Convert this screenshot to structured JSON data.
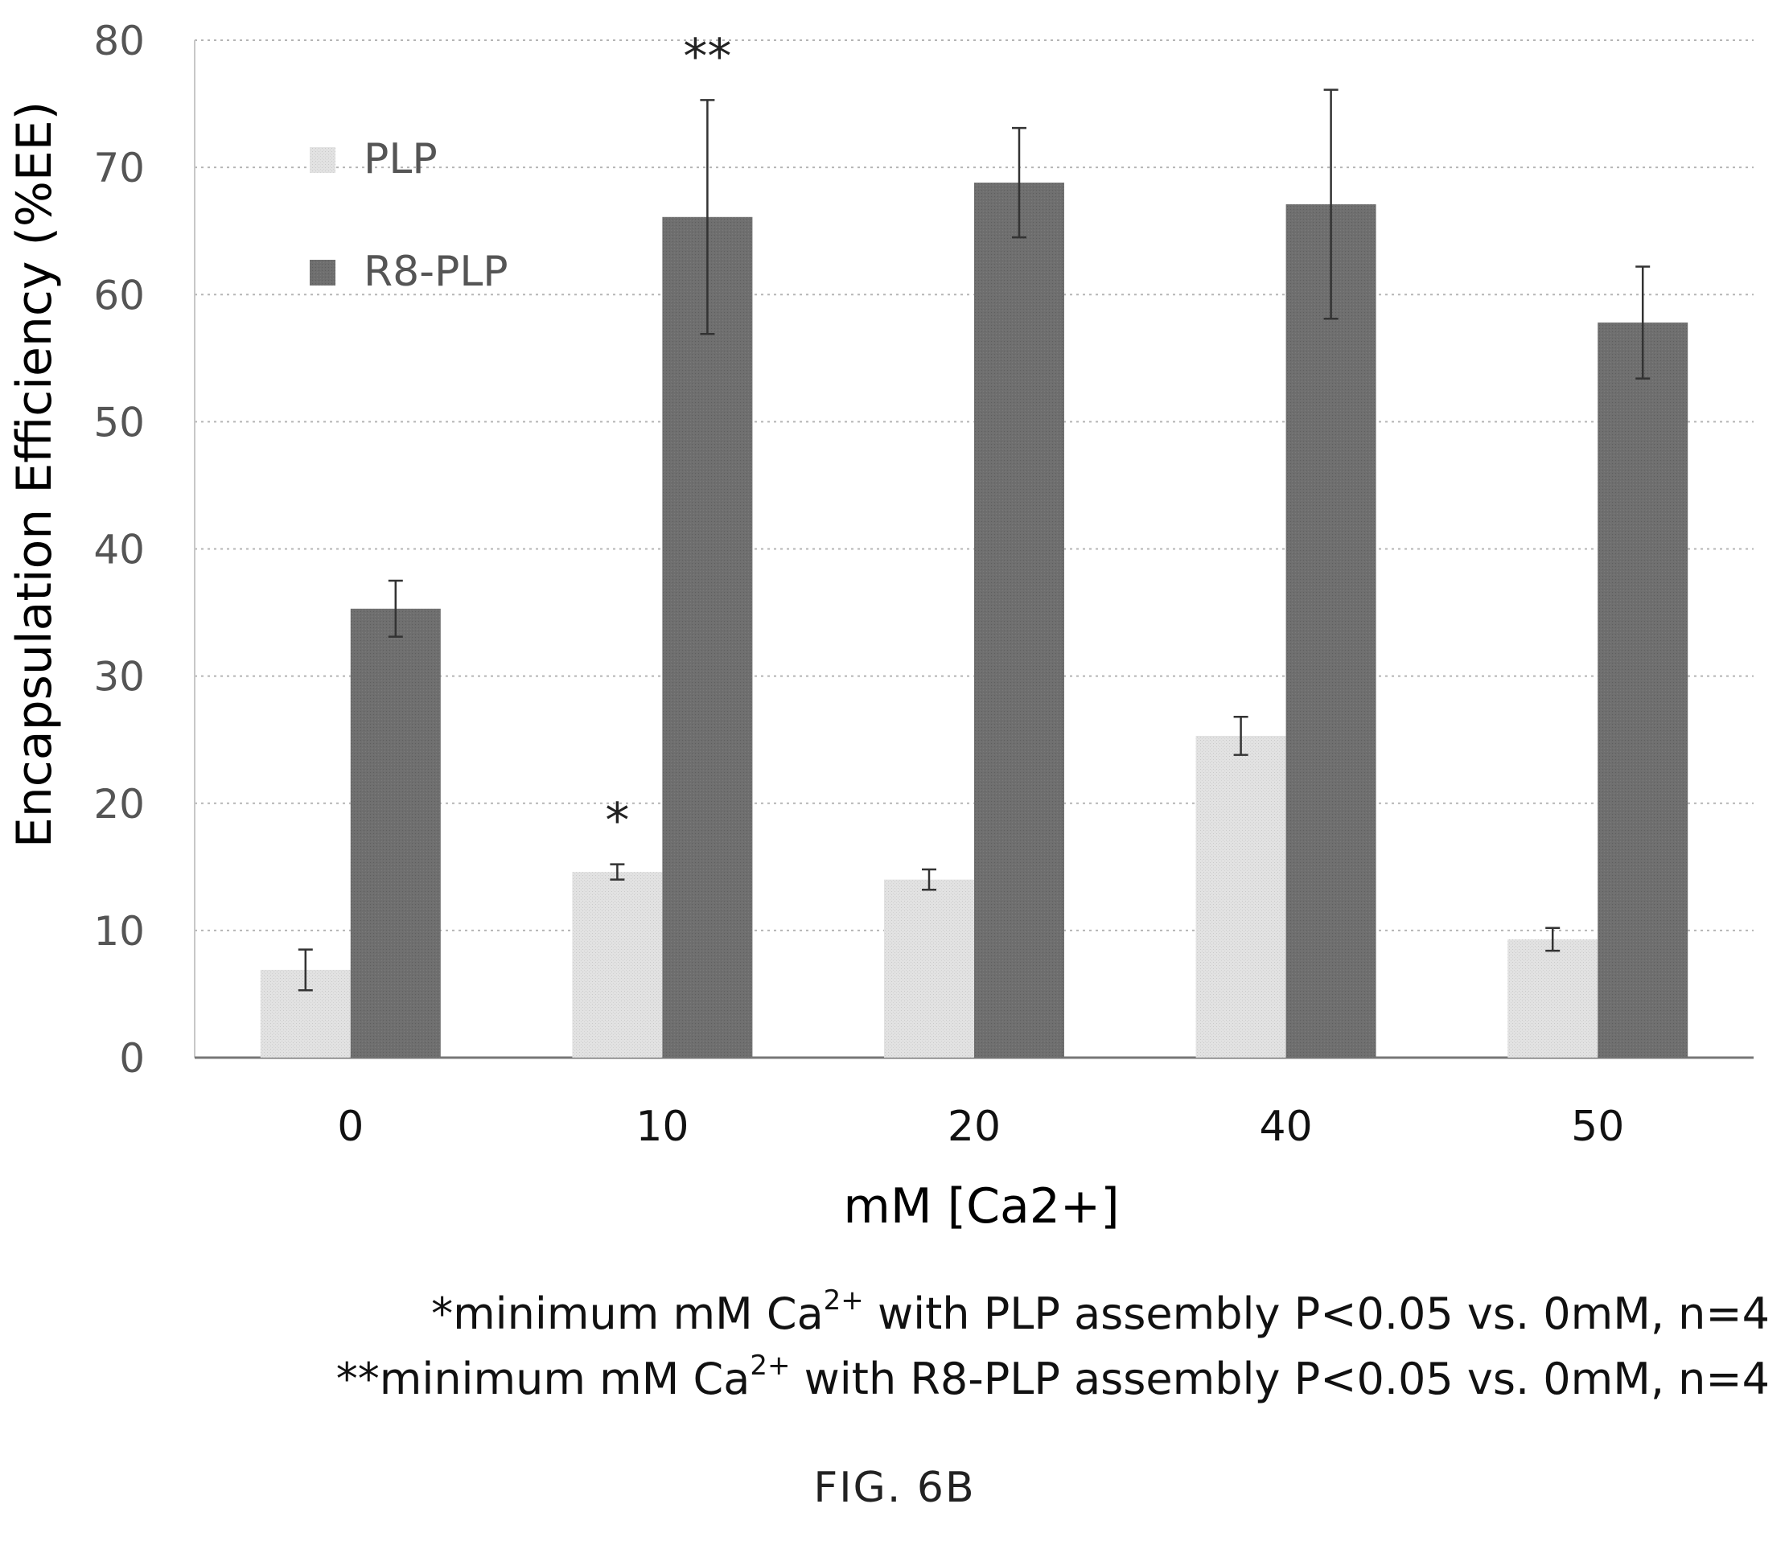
{
  "chart_data": {
    "type": "bar",
    "categories": [
      "0",
      "10",
      "20",
      "40",
      "50"
    ],
    "series": [
      {
        "name": "PLP",
        "values": [
          6.9,
          14.6,
          14.0,
          25.3,
          9.3
        ],
        "errors": [
          1.6,
          0.6,
          0.8,
          1.5,
          0.9
        ],
        "color": "#e2e2e2"
      },
      {
        "name": "R8-PLP",
        "values": [
          35.3,
          66.1,
          68.8,
          67.1,
          57.8
        ],
        "errors": [
          2.2,
          9.2,
          4.3,
          9.0,
          4.4
        ],
        "color": "#6f6f6f"
      }
    ],
    "xlabel": "mM [Ca2+]",
    "ylabel": "Encapsulation Efficiency (%EE)",
    "ylim": [
      0,
      80
    ],
    "yticks": [
      "0",
      "10",
      "20",
      "30",
      "40",
      "50",
      "60",
      "70",
      "80"
    ],
    "grid": true,
    "legend_position": "top-left",
    "annotations": [
      {
        "text": "*",
        "category": "10",
        "series": "PLP"
      },
      {
        "text": "**",
        "category": "10",
        "series": "R8-PLP"
      }
    ]
  },
  "footnotes": [
    {
      "pre": "*minimum mM Ca",
      "sup": "2+",
      "post": " with PLP assembly P<0.05 vs. 0mM, n=4"
    },
    {
      "pre": "**minimum mM Ca",
      "sup": "2+",
      "post": " with R8-PLP assembly P<0.05 vs. 0mM, n=4"
    }
  ],
  "figure_label": "FIG.  6B"
}
